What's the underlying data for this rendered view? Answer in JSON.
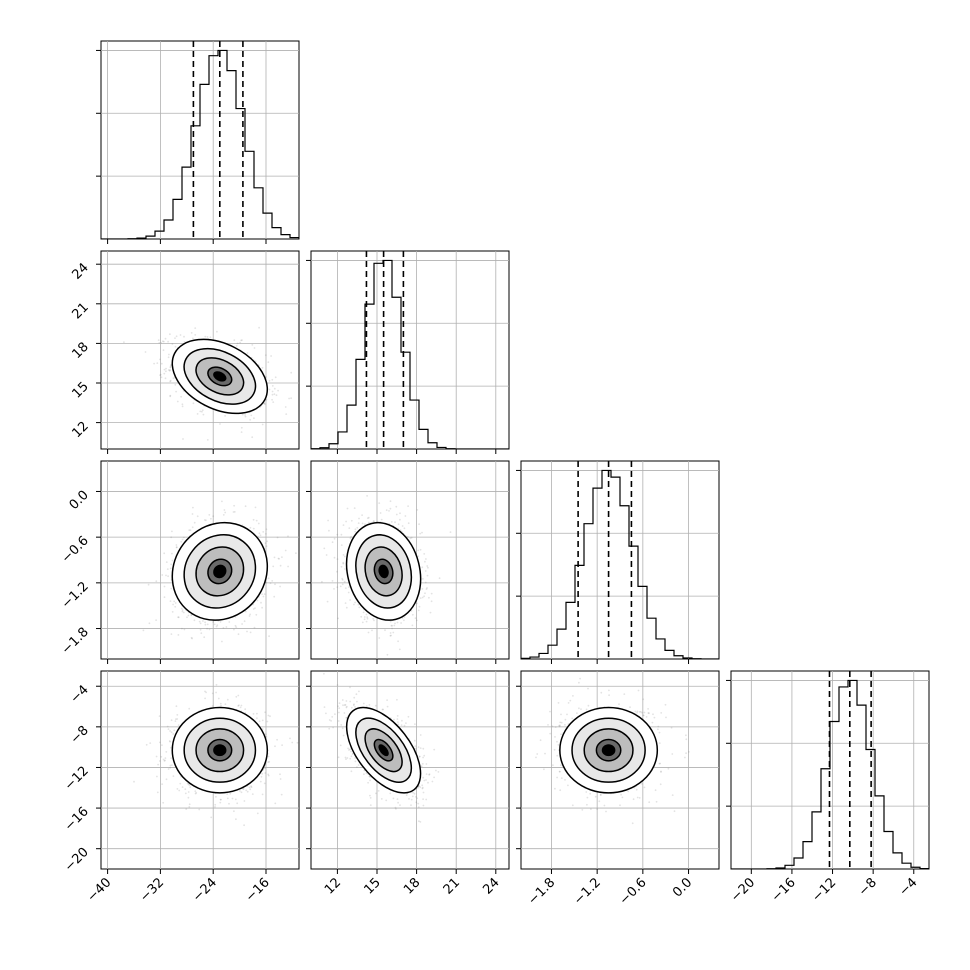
{
  "chart_data": {
    "type": "corner",
    "parameters": [
      {
        "axis_range": [
          -41,
          -11
        ],
        "ticks": [
          -40,
          -32,
          -24,
          -16
        ],
        "tick_labels": [
          "−40",
          "−32",
          "−24",
          "−16"
        ],
        "quantiles": [
          -27,
          -23,
          -19.5
        ],
        "median": -23,
        "sigma": 3.6
      },
      {
        "axis_range": [
          10,
          25
        ],
        "ticks": [
          12,
          15,
          18,
          21,
          24
        ],
        "tick_labels": [
          "12",
          "15",
          "18",
          "21",
          "24"
        ],
        "quantiles": [
          14.2,
          15.5,
          17.0
        ],
        "median": 15.5,
        "sigma": 1.4
      },
      {
        "axis_range": [
          -2.2,
          0.4
        ],
        "ticks": [
          -1.8,
          -1.2,
          -0.6,
          0.0
        ],
        "tick_labels": [
          "−1.8",
          "−1.2",
          "−0.6",
          "0.0"
        ],
        "quantiles": [
          -1.45,
          -1.05,
          -0.75
        ],
        "median": -1.05,
        "sigma": 0.32
      },
      {
        "axis_range": [
          -22,
          -2.5
        ],
        "ticks": [
          -20,
          -16,
          -12,
          -8,
          -4
        ],
        "tick_labels": [
          "−20",
          "−16",
          "−12",
          "−8",
          "−4"
        ],
        "quantiles": [
          -12.3,
          -10.3,
          -8.2
        ],
        "median": -10.3,
        "sigma": 2.1
      }
    ],
    "diagonal_y_ticks": 3,
    "correlations": {
      "1-0": -0.35,
      "2-0": 0.1,
      "2-1": -0.15,
      "3-0": 0.0,
      "3-1": -0.55,
      "3-2": 0.0
    },
    "contour_levels_sigma": [
      0.5,
      1.0,
      1.5,
      2.0
    ],
    "grid": true,
    "colors": {
      "points": "#808080",
      "density": "#000000",
      "lines": "#000000",
      "grid": "#b0b0b0"
    }
  }
}
